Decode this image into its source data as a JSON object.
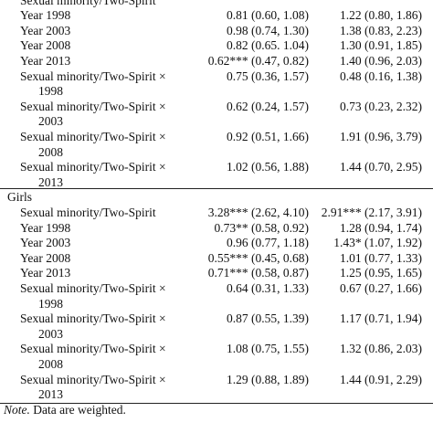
{
  "table": {
    "top_rows": [
      {
        "label": "Sexual minority/Two-Spirit"
      },
      {
        "label": "Year 1998",
        "cells": [
          "0.81 (0.60, 1.08)",
          "1.22 (0.80, 1.86)"
        ]
      },
      {
        "label": "Year 2003",
        "cells": [
          "0.98 (0.74, 1.30)",
          "1.38 (0.83, 2.23)"
        ]
      },
      {
        "label": "Year 2008",
        "cells": [
          "0.82 (0.65. 1.04)",
          "1.30 (0.91, 1.85)"
        ]
      },
      {
        "label": "Year 2013",
        "cells": [
          "0.62*** (0.47, 0.82)",
          "1.40 (0.96, 2.03)"
        ]
      },
      {
        "label": "Sexual minority/Two-Spirit ×",
        "label2": "1998",
        "cells": [
          "0.75 (0.36, 1.57)",
          "0.48 (0.16, 1.38)"
        ]
      },
      {
        "label": "Sexual minority/Two-Spirit ×",
        "label2": "2003",
        "cells": [
          "0.62 (0.24, 1.57)",
          "0.73 (0.23, 2.32)"
        ]
      },
      {
        "label": "Sexual minority/Two-Spirit ×",
        "label2": "2008",
        "cells": [
          "0.92 (0.51, 1.66)",
          "1.91 (0.96, 3.79)"
        ]
      },
      {
        "label": "Sexual minority/Two-Spirit ×",
        "label2": "2013",
        "cells": [
          "1.02 (0.56, 1.88)",
          "1.44 (0.70, 2.95)"
        ]
      }
    ],
    "girls": {
      "title": "Girls",
      "rows": [
        {
          "label": "Sexual minority/Two-Spirit",
          "cells": [
            "3.28*** (2.62, 4.10)",
            "2.91*** (2.17, 3.91)"
          ]
        },
        {
          "label": "Year 1998",
          "cells": [
            "0.73** (0.58, 0.92)",
            "1.28 (0.94, 1.74)"
          ]
        },
        {
          "label": "Year 2003",
          "cells": [
            "0.96 (0.77, 1.18)",
            "1.43* (1.07, 1.92)"
          ]
        },
        {
          "label": "Year 2008",
          "cells": [
            "0.55*** (0.45, 0.68)",
            "1.01 (0.77, 1.33)"
          ]
        },
        {
          "label": "Year 2013",
          "cells": [
            "0.71*** (0.58, 0.87)",
            "1.25 (0.95, 1.65)"
          ]
        },
        {
          "label": "Sexual minority/Two-Spirit ×",
          "label2": "1998",
          "cells": [
            "0.64 (0.31, 1.33)",
            "0.67 (0.27, 1.66)"
          ]
        },
        {
          "label": "Sexual minority/Two-Spirit ×",
          "label2": "2003",
          "cells": [
            "0.87 (0.55, 1.39)",
            "1.17 (0.71, 1.94)"
          ]
        },
        {
          "label": "Sexual minority/Two-Spirit ×",
          "label2": "2008",
          "cells": [
            "1.08 (0.75, 1.55)",
            "1.32 (0.86, 2.03)"
          ]
        },
        {
          "label": "Sexual minority/Two-Spirit ×",
          "label2": "2013",
          "cells": [
            "1.29 (0.88, 1.89)",
            "1.44 (0.91, 2.29)"
          ]
        }
      ]
    }
  },
  "note": {
    "label": "Note.",
    "text": " Data are weighted."
  }
}
